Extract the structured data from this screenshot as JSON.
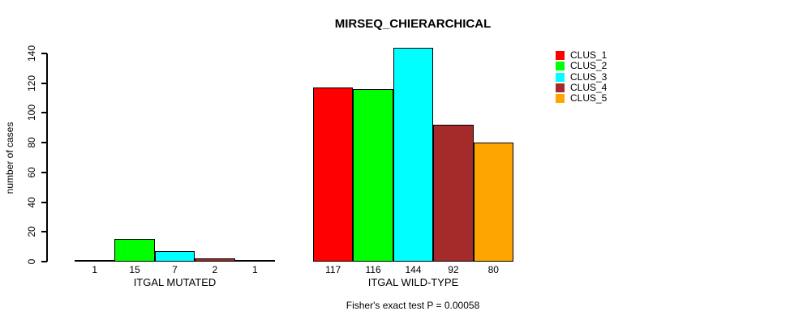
{
  "title": "MIRSEQ_CHIERARCHICAL",
  "chart_data": {
    "type": "bar",
    "title": "MIRSEQ_CHIERARCHICAL",
    "xlabel": "",
    "ylabel": "number of cases",
    "ylim": [
      0,
      140
    ],
    "yticks": [
      0,
      20,
      40,
      60,
      80,
      100,
      120,
      140
    ],
    "grid": false,
    "legend_position": "top-right",
    "annotation": "Fisher's exact test P = 0.00058",
    "series_names": [
      "CLUS_1",
      "CLUS_2",
      "CLUS_3",
      "CLUS_4",
      "CLUS_5"
    ],
    "colors": [
      "#FF0000",
      "#00FF00",
      "#00FFFF",
      "#A52A2A",
      "#FFA500"
    ],
    "groups": [
      {
        "category": "ITGAL MUTATED",
        "values": [
          1,
          15,
          7,
          2,
          1
        ],
        "bar_labels": [
          "1",
          "15",
          "7",
          "2",
          "1"
        ]
      },
      {
        "category": "ITGAL WILD-TYPE",
        "values": [
          117,
          116,
          144,
          92,
          80
        ],
        "bar_labels": [
          "117",
          "116",
          "144",
          "92",
          "80"
        ]
      }
    ]
  }
}
